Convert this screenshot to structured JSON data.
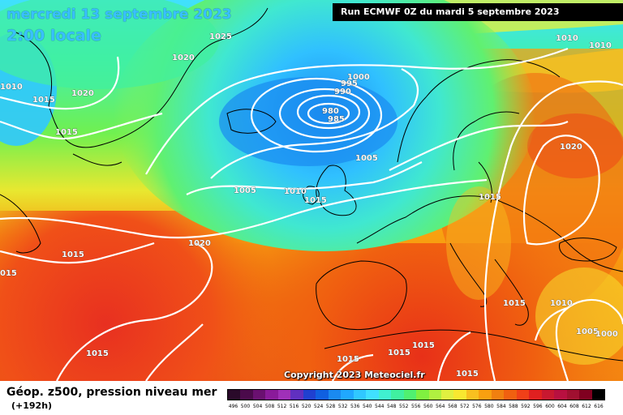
{
  "header": {
    "date": "mercredi 13 septembre 2023",
    "local_time": "2:00 locale",
    "run": "Run ECMWF 0Z du mardi 5 septembre 2023"
  },
  "footer": {
    "copyright": "Copyright 2023 Meteociel.fr",
    "field": "Géop. z500, pression niveau mer",
    "lead": "(+192h)"
  },
  "isobar_labels": [
    "1025",
    "1020",
    "1015",
    "1020",
    "1010",
    "1015",
    "995",
    "990",
    "1000",
    "980",
    "985",
    "1005",
    "1005",
    "1010",
    "1015",
    "1020",
    "1015",
    "015",
    "1010",
    "1010",
    "1020",
    "1015",
    "1015",
    "1010",
    "1005",
    "1000",
    "1015",
    "1015",
    "1015",
    "1015",
    "1015"
  ],
  "colorbar": {
    "labels": [
      "496",
      "500",
      "504",
      "508",
      "512",
      "516",
      "520",
      "524",
      "528",
      "532",
      "536",
      "540",
      "544",
      "548",
      "552",
      "556",
      "560",
      "564",
      "568",
      "572",
      "576",
      "580",
      "584",
      "588",
      "592",
      "596",
      "600",
      "604",
      "608",
      "612",
      "616"
    ],
    "colors": [
      "#2a0a2a",
      "#4b0a4b",
      "#6a1070",
      "#8a1a9a",
      "#a030b8",
      "#6030c0",
      "#2040d0",
      "#1060e0",
      "#1a8af0",
      "#20a8ff",
      "#30c8ff",
      "#40e0ff",
      "#40f0d0",
      "#40f0a0",
      "#50f070",
      "#80f040",
      "#b0f040",
      "#e0f040",
      "#f8e830",
      "#f8c020",
      "#f8a010",
      "#f08010",
      "#f06010",
      "#f04018",
      "#e02020",
      "#c81830",
      "#b81040",
      "#a01030",
      "#800020",
      "#000000"
    ]
  }
}
